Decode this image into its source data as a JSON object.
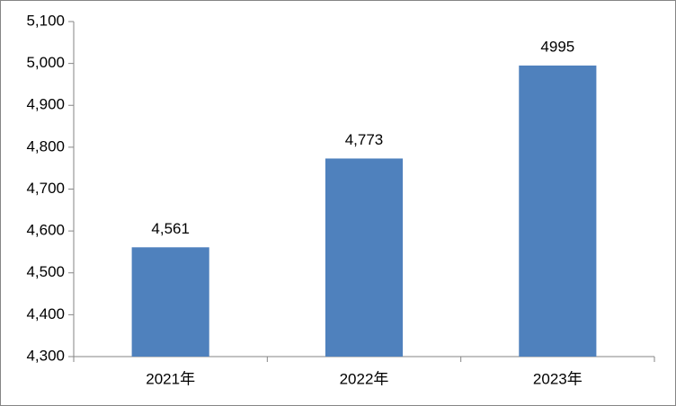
{
  "chart_data": {
    "type": "bar",
    "categories": [
      "2021年",
      "2022年",
      "2023年"
    ],
    "values": [
      4561,
      4773,
      4995
    ],
    "value_labels": [
      "4,561",
      "4,773",
      "4995"
    ],
    "color": "#4f81bd",
    "ylim": [
      4300,
      5100
    ],
    "yticks": [
      {
        "value": 4300,
        "label": "4,300"
      },
      {
        "value": 4400,
        "label": "4,400"
      },
      {
        "value": 4500,
        "label": "4,500"
      },
      {
        "value": 4600,
        "label": "4,600"
      },
      {
        "value": 4700,
        "label": "4,700"
      },
      {
        "value": 4800,
        "label": "4,800"
      },
      {
        "value": 4900,
        "label": "4,900"
      },
      {
        "value": 5000,
        "label": "5,000"
      },
      {
        "value": 5100,
        "label": "5,100"
      }
    ],
    "grid": false
  }
}
